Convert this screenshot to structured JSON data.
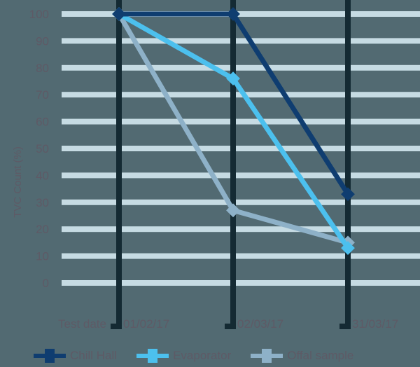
{
  "chart_data": {
    "type": "line",
    "title": "",
    "xlabel": "Test date",
    "ylabel": "TVC Count (%)",
    "categories": [
      "01/02/17",
      "02/03/17",
      "31/03/17"
    ],
    "yticks": [
      0,
      10,
      20,
      30,
      40,
      50,
      60,
      70,
      80,
      90,
      100
    ],
    "ylim": [
      0,
      100
    ],
    "grid": true,
    "legend_position": "bottom",
    "series": [
      {
        "name": "Chill Hall",
        "color": "#0f3d70",
        "values": [
          100,
          100,
          33
        ]
      },
      {
        "name": "Evaporator",
        "color": "#4cc0ee",
        "values": [
          100,
          76,
          13
        ]
      },
      {
        "name": "Offal sample",
        "color": "#8eb1c8",
        "values": [
          100,
          27,
          15
        ]
      }
    ]
  },
  "colors": {
    "background": "#526a72",
    "gridline": "#c6dbe3",
    "axis_line": "#142a33",
    "text": "#5e5a66"
  }
}
